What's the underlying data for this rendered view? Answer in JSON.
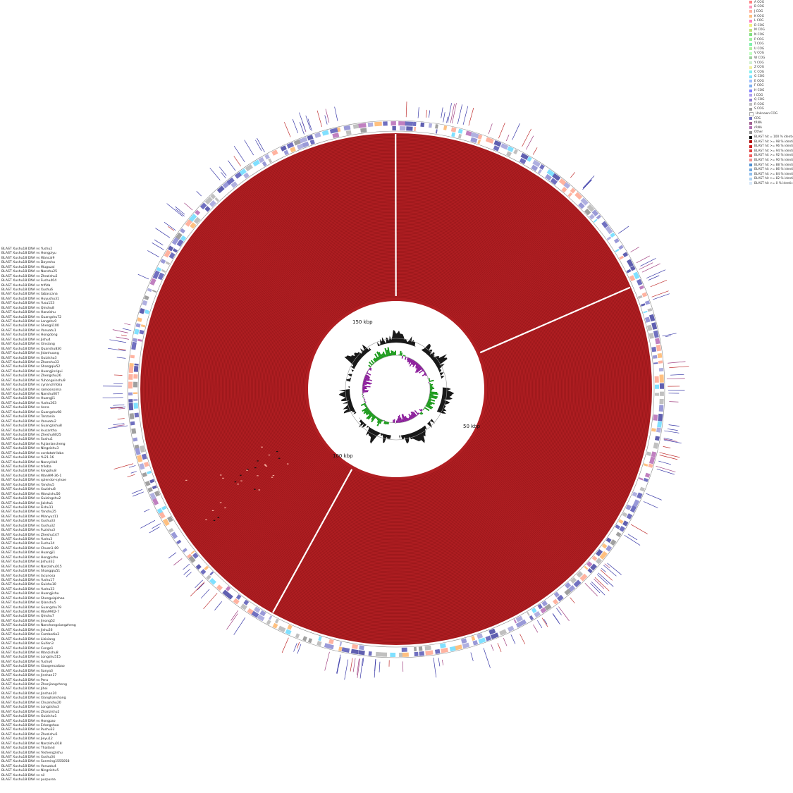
{
  "tracks": [
    "BLAST Xushu18 DNA vs Yushu2",
    "BLAST Xushu18 DNA vs Hongpiyu",
    "BLAST Xushu18 DNA vs Wancai9",
    "BLAST Xushu18 DNA vs Dayeshu",
    "BLAST Xushu18 DNA vs Wuguzai",
    "BLAST Xushu18 DNA vs Nanshu25",
    "BLAST Xushu18 DNA vs Zhezishu2",
    "BLAST Xushu18 DNA vs Fushu404",
    "BLAST Xushu18 DNA vs trifida",
    "BLAST Xushu18 DNA vs Xushu6",
    "BLAST Xushu18 DNA vs tabascana",
    "BLAST Xushu18 DNA vs Huyushu31",
    "BLAST Xushu18 DNA vs Yusu153",
    "BLAST Xushu18 DNA vs Qinshu8",
    "BLAST Xushu18 DNA vs Hanzishu",
    "BLAST Xushu18 DNA vs Guangshu72",
    "BLAST Xushu18 DNA vs Longshu9",
    "BLAST Xushu18 DNA vs Shengli100",
    "BLAST Xushu18 DNA vs Vanuatu1",
    "BLAST Xushu18 DNA vs Hongdong",
    "BLAST Xushu18 DNA vs Jishu4",
    "BLAST Xushu18 DNA vs Xinxiang",
    "BLAST Xushu18 DNA vs Quanshu830",
    "BLAST Xushu18 DNA vs Jidanhuang",
    "BLAST Xushu18 DNA vs Guizishu3",
    "BLAST Xushu18 DNA vs Zhanshu33",
    "BLAST Xushu18 DNA vs Shangqiu52",
    "BLAST Xushu18 DNA vs Huangjinrigui",
    "BLAST Xushu18 DNA vs Zhengshu26",
    "BLAST Xushu18 DNA vs Yuhongxinshu9",
    "BLAST Xushu18 DNA vs cynanchifolia",
    "BLAST Xushu18 DNA vs ramosissima",
    "BLAST Xushu18 DNA vs Nanshu007",
    "BLAST Xushu18 DNA vs Huangji1",
    "BLAST Xushu18 DNA vs Yushu263",
    "BLAST Xushu18 DNA vs Anna",
    "BLAST Xushu18 DNA vs Guangshu98",
    "BLAST Xushu18 DNA vs Tanzania",
    "BLAST Xushu18 DNA vs Vanuatu2",
    "BLAST Xushu18 DNA vs Guangzishu8",
    "BLAST Xushu18 DNA vs leucantha",
    "BLAST Xushu18 DNA vs Zheshu6025",
    "BLAST Xushu18 DNA vs Sushu1",
    "BLAST Xushu18 DNA vs Fujianlancheng",
    "BLAST Xushu18 DNA vs Ningzishu3",
    "BLAST Xushu18 DNA vs cordatotriloba",
    "BLAST Xushu18 DNA vs Yu21-16",
    "BLAST Xushu18 DNA vs NancyHall",
    "BLAST Xushu18 DNA vs triloba",
    "BLAST Xushu18 DNA vs Fangshu8",
    "BLAST Xushu18 DNA vs WanHM-36-1",
    "BLAST Xushu18 DNA vs splendor-sylvae",
    "BLAST Xushu18 DNA vs Yanshu5",
    "BLAST Xushu18 DNA vs Xuzishu8",
    "BLAST Xushu18 DNA vs Wanzishu56",
    "BLAST Xushu18 DNA vs Guizingshu2",
    "BLAST Xushu18 DNA vs Jizishu1",
    "BLAST Xushu18 DNA vs Fishu11",
    "BLAST Xushu18 DNA vs Yanshu25",
    "BLAST Xushu18 DNA vs Mianyuz11",
    "BLAST Xushu18 DNA vs Xushu33",
    "BLAST Xushu18 DNA vs Xushu32",
    "BLAST Xushu18 DNA vs Fuzishu3",
    "BLAST Xushu18 DNA vs Zheshu147",
    "BLAST Xushu18 DNA vs Yushu3",
    "BLAST Xushu18 DNA vs Fushu24",
    "BLAST Xushu18 DNA vs Chuan1-89",
    "BLAST Xushu18 DNA vs Huangji1",
    "BLAST Xushu18 DNA vs Hongpishu",
    "BLAST Xushu18 DNA vs Jishu332",
    "BLAST Xushu18 DNA vs Nanzishu015",
    "BLAST Xushu18 DNA vs Shangqiu51",
    "BLAST Xushu18 DNA vs lacunosa",
    "BLAST Xushu18 DNA vs Yushu17",
    "BLAST Xushu18 DNA vs Guishu10",
    "BLAST Xushu18 DNA vs Yushu33",
    "BLAST Xushu18 DNA vs Huangjishu",
    "BLAST Xushu18 DNA vs Shengxiqishao",
    "BLAST Xushu18 DNA vs Qianshu5",
    "BLAST Xushu18 DNA vs Guangshu79",
    "BLAST Xushu18 DNA vs Wan9902-7",
    "BLAST Xushu18 DNA vs Qinshu7",
    "BLAST Xushu18 DNA vs Jinong52",
    "BLAST Xushu18 DNA vs Nanchongxiangzheng",
    "BLAST Xushu18 DNA vs Jishu26",
    "BLAST Xushu18 DNA vs Cambodia3",
    "BLAST Xushu18 DNA vs Lizixiang",
    "BLAST Xushu18 DNA vs Guifen3",
    "BLAST Xushu18 DNA vs Congo1",
    "BLAST Xushu18 DNA vs Wanzishu8",
    "BLAST Xushu18 DNA vs Longshu515",
    "BLAST Xushu18 DNA vs Yushu6",
    "BLAST Xushu18 DNA vs Xiaogencaibao",
    "BLAST Xushu18 DNA vs Sanya3",
    "BLAST Xushu18 DNA vs Jinshan17",
    "BLAST Xushu18 DNA vs Peru",
    "BLAST Xushu18 DNA vs Zhanjiangcheng",
    "BLAST Xushu18 DNA vs Jihei",
    "BLAST Xushu18 DNA vs Jinshan20",
    "BLAST Xushu18 DNA vs Xianghanshang",
    "BLAST Xushu18 DNA vs Chuanshu20",
    "BLAST Xushu18 DNA vs Longzishu3",
    "BLAST Xushu18 DNA vs Zhanzishu2",
    "BLAST Xushu18 DNA vs Guizishu1",
    "BLAST Xushu18 DNA vs Hongpao",
    "BLAST Xushu18 DNA vs Erlangshao",
    "BLAST Xushu18 DNA vs Pushu32",
    "BLAST Xushu18 DNA vs Zhezishu5",
    "BLAST Xushu18 DNA vs Jieyu12",
    "BLAST Xushu18 DNA vs Nanzishu018",
    "BLAST Xushu18 DNA vs Thailand",
    "BLAST Xushu18 DNA vs Yeshengzishu",
    "BLAST Xushu18 DNA vs Xushu34",
    "BLAST Xushu18 DNA vs Sanming1555058",
    "BLAST Xushu18 DNA vs Vanuatu4",
    "BLAST Xushu18 DNA vs Ningzishu5",
    "BLAST Xushu18 DNA vs nil",
    "BLAST Xushu18 DNA vs purpurea"
  ],
  "key": [
    {
      "label": "A COG",
      "color": "#ff8080"
    },
    {
      "label": "B COG",
      "color": "#ff99bb"
    },
    {
      "label": "J COG",
      "color": "#ffb3a0"
    },
    {
      "label": "K COG",
      "color": "#ffc080"
    },
    {
      "label": "L COG",
      "color": "#ff80c0"
    },
    {
      "label": "D COG",
      "color": "#f0f080"
    },
    {
      "label": "M COG",
      "color": "#c0e080"
    },
    {
      "label": "N COG",
      "color": "#80e080"
    },
    {
      "label": "P COG",
      "color": "#a0f0a0"
    },
    {
      "label": "T COG",
      "color": "#80f0b0"
    },
    {
      "label": "U COG",
      "color": "#b0f0a0"
    },
    {
      "label": "V COG",
      "color": "#c0ffc0"
    },
    {
      "label": "W COG",
      "color": "#a0d0a0"
    },
    {
      "label": "Y COG",
      "color": "#d0f0d0"
    },
    {
      "label": "Z COG",
      "color": "#f0f0a0"
    },
    {
      "label": "C COG",
      "color": "#80f0f0"
    },
    {
      "label": "G COG",
      "color": "#80e0ff"
    },
    {
      "label": "E COG",
      "color": "#a0c0ff"
    },
    {
      "label": "F COG",
      "color": "#80b0f0"
    },
    {
      "label": "H COG",
      "color": "#8080ff"
    },
    {
      "label": "I COG",
      "color": "#b0a0f0"
    },
    {
      "label": "Q COG",
      "color": "#9080d0"
    },
    {
      "label": "R COG",
      "color": "#c0c0c0"
    },
    {
      "label": "S COG",
      "color": "#a0a0a0"
    },
    {
      "label": "Unknown COG",
      "color": "#ffffff"
    },
    {
      "label": "CDS",
      "color": "#7070c0"
    },
    {
      "label": "tRNA",
      "color": "#a06090"
    },
    {
      "label": "rRNA",
      "color": "#b070b0"
    },
    {
      "label": "Other",
      "color": "#909090"
    },
    {
      "label": "BLAST hit = 100 % identical",
      "color": "#000000"
    },
    {
      "label": "BLAST hit >= 98 % identical",
      "color": "#b00000"
    },
    {
      "label": "BLAST hit >= 96 % identical",
      "color": "#d02020"
    },
    {
      "label": "BLAST hit >= 94 % identical",
      "color": "#e04040"
    },
    {
      "label": "BLAST hit >= 92 % identical",
      "color": "#f06060"
    },
    {
      "label": "BLAST hit >= 90 % identical",
      "color": "#f09090"
    },
    {
      "label": "BLAST hit >= 88 % identical",
      "color": "#5090d0"
    },
    {
      "label": "BLAST hit >= 86 % identical",
      "color": "#70a8e0"
    },
    {
      "label": "BLAST hit >= 84 % identical",
      "color": "#90c0f0"
    },
    {
      "label": "BLAST hit >= 82 % identical",
      "color": "#b0d4f4"
    },
    {
      "label": "BLAST hit >= 0 % identical",
      "color": "#d8e8f8"
    }
  ],
  "scale": {
    "mark_150": "150 kbp",
    "mark_50": "50 kbp",
    "mark_100": "100 kbp"
  },
  "colors": {
    "blast_ring": "#b01e22",
    "ring_line": "#7a0d10",
    "gc_positive": "#1a9a1a",
    "gc_negative": "#8a1a9a",
    "gc_content": "#000000"
  }
}
